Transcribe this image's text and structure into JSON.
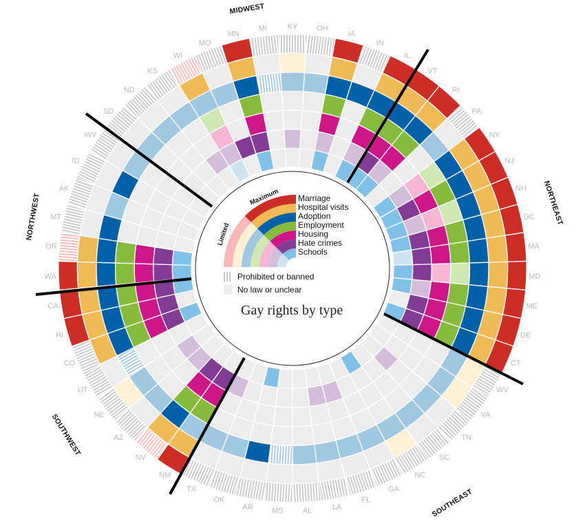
{
  "chart_data": {
    "type": "heatmap",
    "layout": "radial",
    "title": "Gay rights by type",
    "categories": [
      "Marriage",
      "Hospital visits",
      "Adoption",
      "Employment",
      "Housing",
      "Hate crimes",
      "Schools"
    ],
    "levels": {
      "full": "Maximum",
      "limited": "Limited",
      "banned": "Prohibited or banned",
      "none": "No law or unclear"
    },
    "colors": {
      "full": [
        "#cc2e26",
        "#f0ba55",
        "#0060a8",
        "#86bb3c",
        "#cf1688",
        "#823c96",
        "#7fc1e8"
      ],
      "limited": [
        "#f9b8b8",
        "#fef0d2",
        "#a0c8e2",
        "#d0e8b2",
        "#f6b6d4",
        "#d4bddb",
        "#cfe4f1"
      ],
      "none": "#ededed",
      "banned_stripe": "#c8c8c8"
    },
    "regions": [
      "MIDWEST",
      "NORTHEAST",
      "SOUTHEAST",
      "SOUTHWEST",
      "NORTHWEST"
    ],
    "states": [
      {
        "code": "KY",
        "rights": [
          "banned",
          "limited",
          "limited",
          "none",
          "none",
          "limited",
          "none"
        ]
      },
      {
        "code": "OH",
        "rights": [
          "banned",
          "none",
          "limited",
          "none",
          "none",
          "none",
          "none"
        ]
      },
      {
        "code": "IA",
        "rights": [
          "full",
          "full",
          "full",
          "full",
          "full",
          "limited",
          "full"
        ]
      },
      {
        "code": "IN",
        "rights": [
          "banned",
          "none",
          "full",
          "none",
          "none",
          "none",
          "none"
        ]
      },
      {
        "code": "IL",
        "rights": [
          "full",
          "full",
          "full",
          "full",
          "full",
          "limited",
          "full"
        ]
      },
      {
        "code": "VT",
        "rights": [
          "full",
          "full",
          "full",
          "full",
          "full",
          "full",
          "full"
        ]
      },
      {
        "code": "RI",
        "rights": [
          "full",
          "full",
          "full",
          "full",
          "full",
          "limited",
          "full"
        ]
      },
      {
        "code": "PA",
        "rights": [
          "banned",
          "none",
          "limited",
          "none",
          "none",
          "none",
          "none"
        ]
      },
      {
        "code": "NY",
        "rights": [
          "full",
          "full",
          "full",
          "limited",
          "limited",
          "limited",
          "full"
        ]
      },
      {
        "code": "NJ",
        "rights": [
          "full",
          "full",
          "full",
          "full",
          "full",
          "full",
          "full"
        ]
      },
      {
        "code": "NH",
        "rights": [
          "full",
          "full",
          "full",
          "limited",
          "limited",
          "limited",
          "full"
        ]
      },
      {
        "code": "DC",
        "rights": [
          "full",
          "full",
          "full",
          "full",
          "full",
          "full",
          "full"
        ]
      },
      {
        "code": "MA",
        "rights": [
          "full",
          "full",
          "full",
          "full",
          "full",
          "full",
          "limited"
        ]
      },
      {
        "code": "MD",
        "rights": [
          "full",
          "full",
          "full",
          "limited",
          "limited",
          "full",
          "full"
        ]
      },
      {
        "code": "ME",
        "rights": [
          "full",
          "full",
          "full",
          "full",
          "full",
          "limited",
          "full"
        ]
      },
      {
        "code": "DE",
        "rights": [
          "full",
          "full",
          "full",
          "full",
          "full",
          "full",
          "none"
        ]
      },
      {
        "code": "CT",
        "rights": [
          "full",
          "full",
          "full",
          "full",
          "full",
          "full",
          "full"
        ]
      },
      {
        "code": "WV",
        "rights": [
          "banned",
          "limited",
          "limited",
          "none",
          "none",
          "none",
          "none"
        ]
      },
      {
        "code": "VA",
        "rights": [
          "banned",
          "limited",
          "limited",
          "none",
          "none",
          "none",
          "none"
        ]
      },
      {
        "code": "TN",
        "rights": [
          "banned",
          "none",
          "limited",
          "none",
          "none",
          "limited",
          "none"
        ]
      },
      {
        "code": "SC",
        "rights": [
          "banned",
          "none",
          "limited",
          "none",
          "none",
          "none",
          "none"
        ]
      },
      {
        "code": "NC",
        "rights": [
          "banned",
          "limited",
          "limited",
          "none",
          "none",
          "none",
          "full"
        ]
      },
      {
        "code": "GA",
        "rights": [
          "banned",
          "none",
          "limited",
          "none",
          "none",
          "none",
          "none"
        ]
      },
      {
        "code": "FL",
        "rights": [
          "banned",
          "none",
          "limited",
          "none",
          "none",
          "limited",
          "none"
        ]
      },
      {
        "code": "LA",
        "rights": [
          "banned",
          "none",
          "limited",
          "none",
          "none",
          "limited",
          "none"
        ]
      },
      {
        "code": "AL",
        "rights": [
          "banned",
          "none",
          "limited",
          "none",
          "none",
          "none",
          "none"
        ]
      },
      {
        "code": "MS",
        "rights": [
          "banned",
          "none",
          "banned",
          "none",
          "none",
          "none",
          "none"
        ]
      },
      {
        "code": "AR",
        "rights": [
          "banned",
          "none",
          "full",
          "none",
          "none",
          "none",
          "full"
        ]
      },
      {
        "code": "OK",
        "rights": [
          "banned",
          "none",
          "limited",
          "none",
          "none",
          "none",
          "none"
        ]
      },
      {
        "code": "TX",
        "rights": [
          "banned",
          "none",
          "limited",
          "none",
          "none",
          "limited",
          "none"
        ]
      },
      {
        "code": "NM",
        "rights": [
          "full",
          "full",
          "limited",
          "full",
          "full",
          "full",
          "none"
        ]
      },
      {
        "code": "NV",
        "rights": [
          "limited-banned",
          "full",
          "full",
          "full",
          "full",
          "full",
          "none"
        ]
      },
      {
        "code": "AZ",
        "rights": [
          "banned",
          "none",
          "limited",
          "none",
          "none",
          "limited",
          "none"
        ]
      },
      {
        "code": "NE",
        "rights": [
          "banned",
          "limited",
          "limited",
          "none",
          "none",
          "limited",
          "none"
        ]
      },
      {
        "code": "UT",
        "rights": [
          "banned",
          "none",
          "banned",
          "none",
          "none",
          "none",
          "none"
        ]
      },
      {
        "code": "CO",
        "rights": [
          "banned",
          "full",
          "full",
          "full",
          "full",
          "full",
          "full"
        ]
      },
      {
        "code": "HI",
        "rights": [
          "full",
          "full",
          "full",
          "full",
          "full",
          "full",
          "none"
        ]
      },
      {
        "code": "CA",
        "rights": [
          "full",
          "full",
          "full",
          "full",
          "full",
          "full",
          "full"
        ]
      },
      {
        "code": "WA",
        "rights": [
          "full",
          "full",
          "full",
          "full",
          "full",
          "full",
          "full"
        ]
      },
      {
        "code": "OR",
        "rights": [
          "limited-banned",
          "full",
          "full",
          "full",
          "full",
          "full",
          "full"
        ]
      },
      {
        "code": "MT",
        "rights": [
          "banned",
          "none",
          "full",
          "none",
          "none",
          "none",
          "none"
        ]
      },
      {
        "code": "AK",
        "rights": [
          "banned",
          "none",
          "limited",
          "none",
          "none",
          "none",
          "none"
        ]
      },
      {
        "code": "ID",
        "rights": [
          "banned",
          "none",
          "full",
          "none",
          "none",
          "none",
          "none"
        ]
      },
      {
        "code": "WY",
        "rights": [
          "banned",
          "none",
          "limited",
          "none",
          "none",
          "none",
          "none"
        ]
      },
      {
        "code": "SD",
        "rights": [
          "banned",
          "none",
          "limited",
          "none",
          "none",
          "none",
          "none"
        ]
      },
      {
        "code": "ND",
        "rights": [
          "banned",
          "none",
          "limited",
          "none",
          "none",
          "none",
          "none"
        ]
      },
      {
        "code": "KS",
        "rights": [
          "banned",
          "none",
          "limited",
          "none",
          "none",
          "limited",
          "none"
        ]
      },
      {
        "code": "WI",
        "rights": [
          "limited-banned",
          "full",
          "limited",
          "limited",
          "limited",
          "limited",
          "limited"
        ]
      },
      {
        "code": "MO",
        "rights": [
          "banned",
          "none",
          "limited",
          "none",
          "none",
          "full",
          "none"
        ]
      },
      {
        "code": "MN",
        "rights": [
          "full",
          "full",
          "full",
          "full",
          "full",
          "full",
          "full"
        ]
      },
      {
        "code": "MI",
        "rights": [
          "banned",
          "none",
          "banned",
          "none",
          "none",
          "none",
          "none"
        ]
      }
    ]
  },
  "legend": {
    "maximum_label": "Maximum",
    "limited_label": "Limited",
    "items": [
      "Marriage",
      "Hospital visits",
      "Adoption",
      "Employment",
      "Housing",
      "Hate crimes",
      "Schools"
    ],
    "banned_label": "Prohibited or banned",
    "none_label": "No law or unclear"
  }
}
